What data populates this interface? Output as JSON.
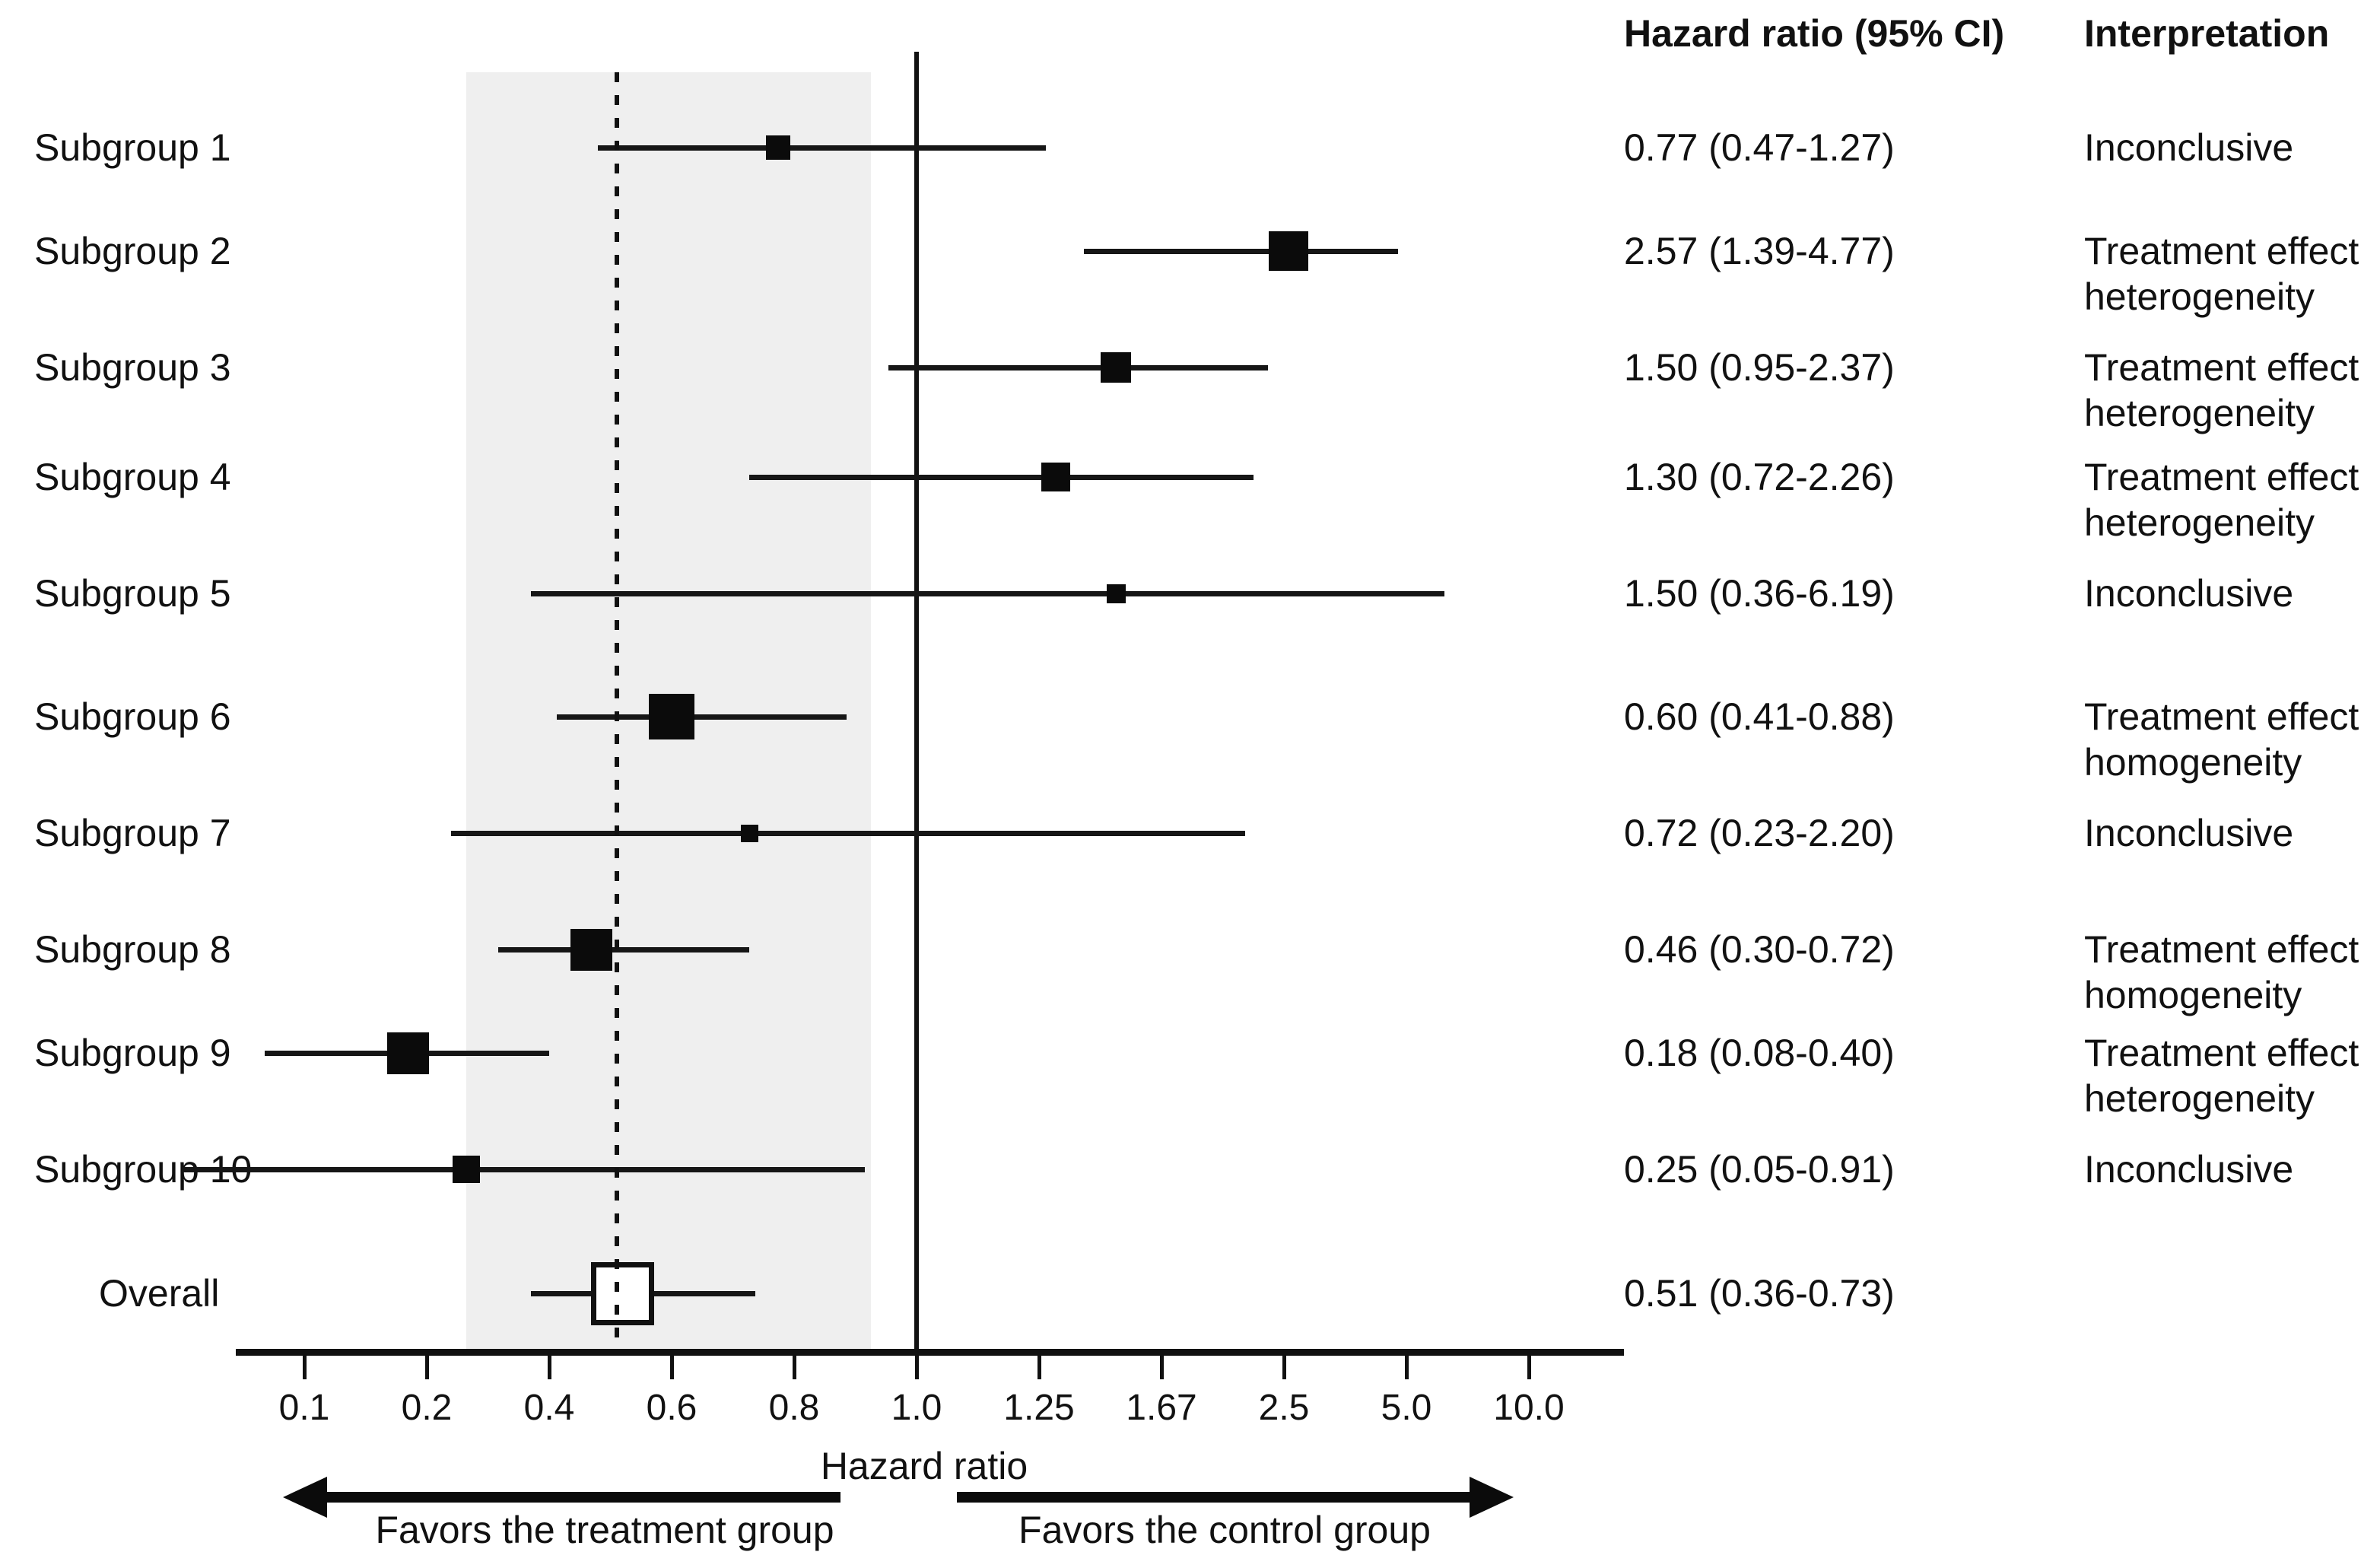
{
  "chart_data": {
    "type": "forest",
    "title": "",
    "xlabel": "Hazard ratio",
    "axis_ticks": [
      0.1,
      0.2,
      0.4,
      0.6,
      0.8,
      1.0,
      1.25,
      1.67,
      2.5,
      5.0,
      10.0
    ],
    "tick_labels": [
      "0.1",
      "0.2",
      "0.4",
      "0.6",
      "0.8",
      "1.0",
      "1.25",
      "1.67",
      "2.5",
      "5.0",
      "10.0"
    ],
    "axis_scale": "log-symmetric-reciprocal, ticks equally spaced",
    "reference_line_solid": 1.0,
    "reference_line_dotted": 0.5,
    "shaded_region": [
      0.25,
      0.92
    ],
    "columns": {
      "hr_header": "Hazard ratio (95% CI)",
      "interpretation_header": "Interpretation"
    },
    "arrows": {
      "left_label": "Favors the treatment group",
      "right_label": "Favors the control group"
    },
    "rows": [
      {
        "label": "Subgroup 1",
        "est": 0.77,
        "lo": 0.47,
        "hi": 1.27,
        "hr_text": "0.77 (0.47-1.27)",
        "interpretation": "Inconclusive",
        "marker_size": 32,
        "overall": false
      },
      {
        "label": "Subgroup 2",
        "est": 2.57,
        "lo": 1.39,
        "hi": 4.77,
        "hr_text": "2.57 (1.39-4.77)",
        "interpretation": "Treatment effect heterogeneity",
        "marker_size": 52,
        "overall": false
      },
      {
        "label": "Subgroup 3",
        "est": 1.5,
        "lo": 0.95,
        "hi": 2.37,
        "hr_text": "1.50 (0.95-2.37)",
        "interpretation": "Treatment effect heterogeneity",
        "marker_size": 40,
        "overall": false
      },
      {
        "label": "Subgroup 4",
        "est": 1.3,
        "lo": 0.72,
        "hi": 2.26,
        "hr_text": "1.30 (0.72-2.26)",
        "interpretation": "Treatment effect heterogeneity",
        "marker_size": 38,
        "overall": false
      },
      {
        "label": "Subgroup 5",
        "est": 1.5,
        "lo": 0.36,
        "hi": 6.19,
        "hr_text": "1.50 (0.36-6.19)",
        "interpretation": "Inconclusive",
        "marker_size": 25,
        "overall": false
      },
      {
        "label": "Subgroup 6",
        "est": 0.6,
        "lo": 0.41,
        "hi": 0.88,
        "hr_text": "0.60 (0.41-0.88)",
        "interpretation": "Treatment effect homogeneity",
        "marker_size": 60,
        "overall": false
      },
      {
        "label": "Subgroup 7",
        "est": 0.72,
        "lo": 0.23,
        "hi": 2.2,
        "hr_text": "0.72 (0.23-2.20)",
        "interpretation": "Inconclusive",
        "marker_size": 23,
        "overall": false
      },
      {
        "label": "Subgroup 8",
        "est": 0.46,
        "lo": 0.3,
        "hi": 0.72,
        "hr_text": "0.46 (0.30-0.72)",
        "interpretation": "Treatment effect homogeneity",
        "marker_size": 55,
        "overall": false
      },
      {
        "label": "Subgroup 9",
        "est": 0.18,
        "lo": 0.08,
        "hi": 0.4,
        "hr_text": "0.18 (0.08-0.40)",
        "interpretation": "Treatment effect heterogeneity",
        "marker_size": 55,
        "overall": false
      },
      {
        "label": "Subgroup 10",
        "est": 0.25,
        "lo": 0.05,
        "hi": 0.91,
        "hr_text": "0.25 (0.05-0.91)",
        "interpretation": "Inconclusive",
        "marker_size": 36,
        "overall": false
      },
      {
        "label": "Overall",
        "est": 0.51,
        "lo": 0.36,
        "hi": 0.73,
        "hr_text": "0.51 (0.36-0.73)",
        "interpretation": "",
        "marker_size": 83,
        "overall": true
      }
    ]
  }
}
